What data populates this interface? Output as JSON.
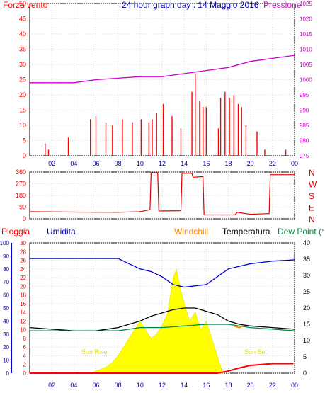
{
  "header": {
    "wind_label": "Forza vento",
    "title": "24 hour graph day : 14 Maggio 2016",
    "pressure_label": "Pressione"
  },
  "panel3_header": {
    "rain": "Pioggia",
    "humidity": "Umidita",
    "windchill": "Windchill",
    "temperature": "Temperatura",
    "dewpoint": "Dew Point (°C"
  },
  "annotations": {
    "sunrise": "Sun Rise",
    "sunset": "Sun Set"
  },
  "colors": {
    "wind": "#ff0000",
    "pressure": "#cc00cc",
    "gust_green": "#008800",
    "gust_blue": "#0000cc",
    "direction": "#dd0000",
    "rain": "#ff0000",
    "humidity": "#0000cc",
    "windchill": "#ff8800",
    "temperature": "#000000",
    "dewpoint": "#008844",
    "solar": "#ffff00"
  },
  "chart_data": [
    {
      "type": "line",
      "title": "24 hour graph day : 14 Maggio 2016",
      "xlabel": "",
      "ylabel": "Forza vento",
      "x_ticks": [
        "02",
        "04",
        "06",
        "08",
        "10",
        "12",
        "14",
        "16",
        "18",
        "20",
        "22",
        "00"
      ],
      "ylim": [
        0,
        50
      ],
      "y_ticks": [
        0,
        5,
        10,
        15,
        20,
        25,
        30,
        35,
        40,
        45,
        50
      ],
      "y2label": "Pressione",
      "y2lim": [
        975,
        1025
      ],
      "y2_ticks": [
        975,
        980,
        985,
        990,
        995,
        1000,
        1005,
        1010,
        1015,
        1020,
        1025
      ],
      "series": [
        {
          "name": "Pressione",
          "axis": "right",
          "x": [
            0,
            2,
            4,
            6,
            8,
            10,
            12,
            14,
            16,
            18,
            20,
            22,
            24
          ],
          "values": [
            999,
            999,
            999,
            1000,
            1000.5,
            1001,
            1001,
            1002,
            1003,
            1004,
            1006,
            1007,
            1008
          ]
        },
        {
          "name": "Forza vento",
          "axis": "left",
          "x": [
            1.4,
            1.7,
            3.5,
            5.5,
            6.0,
            6.9,
            7.5,
            8.4,
            9.3,
            10.1,
            10.8,
            11.1,
            11.5,
            12.1,
            12.9,
            13.7,
            14.7,
            15.0,
            15.4,
            15.7,
            16.0,
            17.1,
            17.3,
            17.7,
            18.1,
            18.5,
            18.9,
            19.2,
            19.6,
            20.6,
            21.3,
            23.2
          ],
          "values": [
            4,
            2,
            6,
            12,
            13,
            11,
            10,
            12,
            11,
            12,
            11,
            12,
            14,
            17,
            13,
            9,
            21,
            27,
            18,
            16,
            16,
            9,
            19,
            21,
            19,
            20,
            17,
            16,
            10,
            8,
            2,
            2
          ]
        }
      ],
      "grid": true
    },
    {
      "type": "line",
      "ylabel": "",
      "ylim": [
        0,
        360
      ],
      "y_ticks": [
        0,
        90,
        180,
        270,
        360
      ],
      "y2_labels": [
        "N",
        "W",
        "S",
        "E",
        "N"
      ],
      "series": [
        {
          "name": "direction",
          "x": [
            0,
            4,
            8,
            10,
            10.9,
            11.0,
            11.6,
            11.7,
            13.7,
            13.8,
            14.7,
            14.8,
            15.7,
            15.8,
            18.6,
            18.8,
            19.2,
            19.6,
            20,
            21.7,
            21.8,
            24
          ],
          "values": [
            55,
            52,
            50,
            55,
            70,
            355,
            355,
            60,
            62,
            350,
            350,
            320,
            325,
            30,
            30,
            50,
            45,
            40,
            35,
            40,
            340,
            340
          ]
        }
      ]
    },
    {
      "type": "area",
      "x_ticks": [
        "02",
        "04",
        "06",
        "08",
        "10",
        "12",
        "14",
        "16",
        "18",
        "20",
        "22",
        "00"
      ],
      "ylabel": "Pioggia",
      "ylim": [
        0,
        30
      ],
      "y_ticks": [
        0,
        2,
        4,
        6,
        8,
        10,
        12,
        14,
        16,
        18,
        20,
        22,
        24,
        26,
        28,
        30
      ],
      "humidity_ticks": [
        0,
        10,
        20,
        30,
        40,
        50,
        60,
        70,
        80,
        90,
        100
      ],
      "y2lim": [
        0,
        40
      ],
      "y2_ticks": [
        0,
        5,
        10,
        15,
        20,
        25,
        30,
        35,
        40
      ],
      "series": [
        {
          "name": "Umidita",
          "axis": "humidity",
          "x": [
            0,
            2,
            4,
            6,
            8,
            9,
            10,
            11,
            12,
            13,
            14,
            15,
            16,
            17,
            18,
            19,
            20,
            22,
            24
          ],
          "values": [
            88,
            88,
            88,
            88,
            88,
            84,
            80,
            78,
            74,
            68,
            66,
            67,
            68,
            74,
            80,
            82,
            84,
            86,
            87
          ]
        },
        {
          "name": "Temperatura",
          "axis": "right",
          "x": [
            0,
            2,
            4,
            6,
            8,
            9,
            10,
            11,
            12,
            13,
            14,
            15,
            16,
            17,
            18,
            19,
            20,
            22,
            24
          ],
          "values": [
            14,
            13.5,
            13,
            13,
            14,
            15,
            16,
            17.5,
            18.5,
            19.5,
            20,
            20,
            19,
            18,
            16,
            15,
            14.5,
            14,
            13.5
          ]
        },
        {
          "name": "Dew Point",
          "axis": "right",
          "x": [
            0,
            2,
            4,
            6,
            8,
            10,
            12,
            14,
            16,
            18,
            20,
            22,
            24
          ],
          "values": [
            13,
            13,
            13,
            13,
            13,
            14,
            14,
            14.5,
            15,
            15,
            14,
            13.5,
            13
          ]
        },
        {
          "name": "Windchill",
          "axis": "right",
          "x": [
            18.5,
            19,
            19.3
          ],
          "values": [
            14.5,
            14,
            14.5
          ]
        },
        {
          "name": "Sun Rise / Solar",
          "axis": "solar",
          "x": [
            5.5,
            6.5,
            7,
            7.5,
            8,
            8.5,
            9,
            9.5,
            10,
            10.5,
            11,
            11.5,
            12,
            12.5,
            13,
            13.3,
            13.6,
            14,
            14.5,
            15,
            15.5,
            16,
            16.5,
            17,
            17.5
          ],
          "values": [
            0,
            1,
            1.5,
            2.5,
            4,
            6,
            8,
            10,
            12,
            10,
            8,
            9,
            11,
            14,
            22,
            24,
            20,
            16,
            12,
            14,
            10,
            12,
            8,
            4,
            0
          ]
        },
        {
          "name": "Pioggia",
          "axis": "left",
          "x": [
            0,
            17,
            18,
            19,
            20,
            22,
            23.9
          ],
          "values": [
            0,
            0,
            0.5,
            1.2,
            1.8,
            2.2,
            2.2
          ]
        }
      ]
    }
  ]
}
